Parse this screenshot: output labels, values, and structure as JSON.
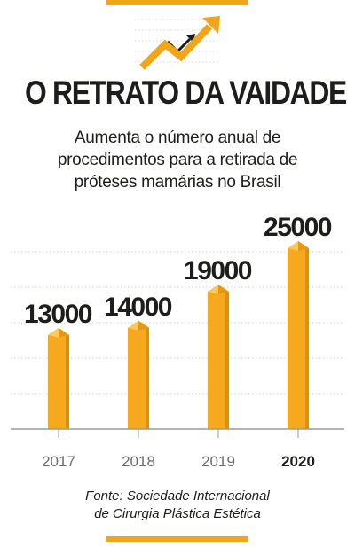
{
  "header": {
    "title": "O RETRATO DA VAIDADE",
    "subtitle_lines": [
      "Aumenta o número anual de",
      "procedimentos para a retirada de",
      "próteses mamárias no Brasil"
    ]
  },
  "footer": {
    "source_lines": [
      "Fonte: Sociedade Internacional",
      "de Cirurgia Plástica Estética"
    ]
  },
  "colors": {
    "accent": "#f2a617",
    "bar_front": "#f6a81e",
    "bar_side": "#e08f08",
    "bar_top": "#fcc95a",
    "text": "#1d1d1b",
    "muted": "#6b6b6b"
  },
  "icons": {
    "trend": "trend-up-arrow-icon"
  },
  "chart_data": {
    "type": "bar",
    "categories": [
      "2017",
      "2018",
      "2019",
      "2020"
    ],
    "values": [
      13000,
      14000,
      19000,
      25000
    ],
    "value_labels": [
      "13000",
      "14000",
      "19000",
      "25000"
    ],
    "highlight_category": "2020",
    "ylim": [
      0,
      25000
    ],
    "grid": true,
    "title": "O RETRATO DA VAIDADE"
  }
}
